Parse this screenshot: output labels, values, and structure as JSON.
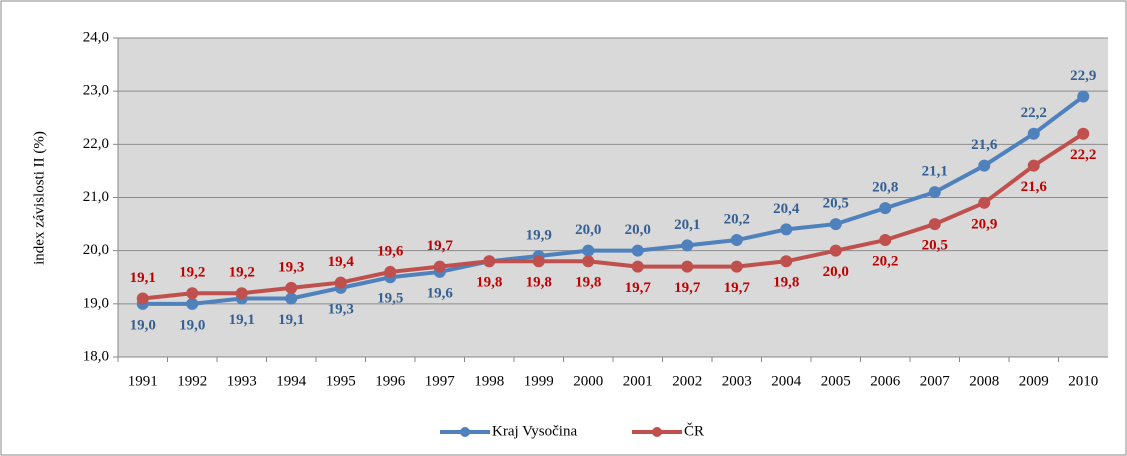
{
  "chart_data": {
    "type": "line",
    "y_label": "index závislosti II (%)",
    "categories": [
      "1991",
      "1992",
      "1993",
      "1994",
      "1995",
      "1996",
      "1997",
      "1998",
      "1999",
      "2000",
      "2001",
      "2002",
      "2003",
      "2004",
      "2005",
      "2006",
      "2007",
      "2008",
      "2009",
      "2010"
    ],
    "series": [
      {
        "name": "Kraj Vysočina",
        "color": "#4f81bd",
        "label_color": "#366092",
        "values": [
          19.0,
          19.0,
          19.1,
          19.1,
          19.3,
          19.5,
          19.6,
          19.8,
          19.9,
          20.0,
          20.0,
          20.1,
          20.2,
          20.4,
          20.5,
          20.8,
          21.1,
          21.6,
          22.2,
          22.9
        ],
        "value_labels": [
          "19,0",
          "19,0",
          "19,1",
          "19,1",
          "19,3",
          "19,5",
          "19,6",
          null,
          "19,9",
          "20,0",
          "20,0",
          "20,1",
          "20,2",
          "20,4",
          "20,5",
          "20,8",
          "21,1",
          "21,6",
          "22,2",
          "22,9"
        ]
      },
      {
        "name": "ČR",
        "color": "#c0504d",
        "label_color": "#c00000",
        "values": [
          19.1,
          19.2,
          19.2,
          19.3,
          19.4,
          19.6,
          19.7,
          19.8,
          19.8,
          19.8,
          19.7,
          19.7,
          19.7,
          19.8,
          20.0,
          20.2,
          20.5,
          20.9,
          21.6,
          22.2
        ],
        "value_labels": [
          "19,1",
          "19,2",
          "19,2",
          "19,3",
          "19,4",
          "19,6",
          "19,7",
          "19,8",
          "19,8",
          "19,8",
          "19,7",
          "19,7",
          "19,7",
          "19,8",
          "20,0",
          "20,2",
          "20,5",
          "20,9",
          "21,6",
          "22,2"
        ]
      }
    ],
    "ylim": [
      18,
      24
    ],
    "yticks": [
      {
        "value": 18,
        "label": "18,0"
      },
      {
        "value": 19,
        "label": "19,0"
      },
      {
        "value": 20,
        "label": "20,0"
      },
      {
        "value": 21,
        "label": "21,0"
      },
      {
        "value": 22,
        "label": "22,0"
      },
      {
        "value": 23,
        "label": "23,0"
      },
      {
        "value": 24,
        "label": "24,0"
      }
    ],
    "grid": true,
    "legend": "bottom",
    "plot_background": "#d9d9d9"
  }
}
